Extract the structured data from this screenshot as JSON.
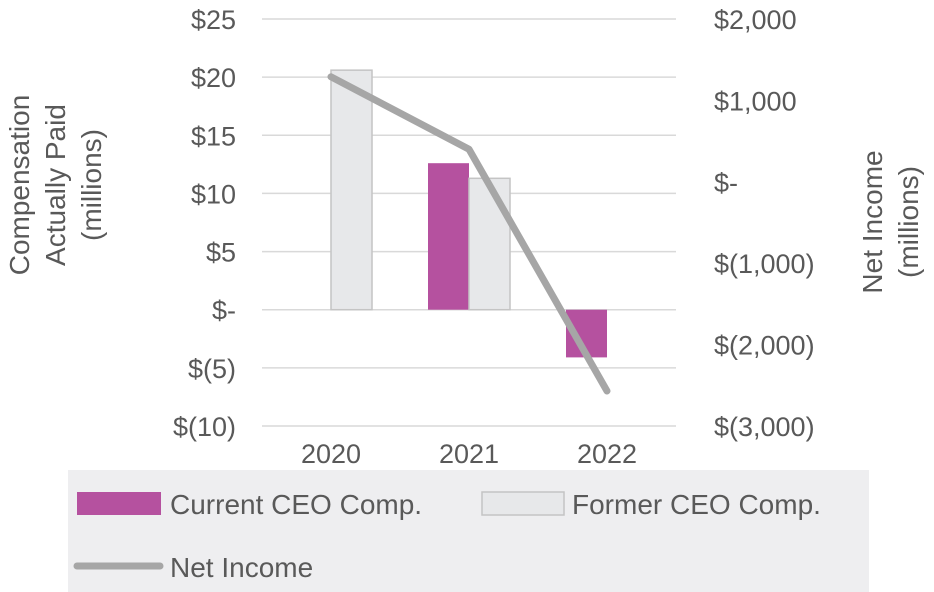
{
  "chart_data": {
    "type": "bar",
    "categories": [
      "2020",
      "2021",
      "2022"
    ],
    "series": [
      {
        "name": "Current CEO Comp.",
        "type": "bar",
        "axis": "left",
        "values": [
          null,
          12.6,
          -4.1
        ],
        "color": "#b5519f"
      },
      {
        "name": "Former CEO Comp.",
        "type": "bar",
        "axis": "left",
        "values": [
          20.6,
          11.3,
          null
        ],
        "color": "#e7e8ea"
      },
      {
        "name": "Net Income",
        "type": "line",
        "axis": "right",
        "values": [
          1290,
          400,
          -2570
        ],
        "color": "#a6a6a6"
      }
    ],
    "left_axis": {
      "title_lines": [
        "Compensation",
        "Actually Paid",
        "(millions)"
      ],
      "ylim": [
        -10,
        25
      ],
      "ticks": [
        25,
        20,
        15,
        10,
        5,
        0,
        -5,
        -10
      ],
      "tick_labels": [
        "$25",
        "$20",
        "$15",
        "$10",
        "$5",
        "$-",
        "$(5)",
        "$(10)"
      ]
    },
    "right_axis": {
      "title_lines": [
        "Net Income",
        "(millions)"
      ],
      "ylim": [
        -3000,
        2000
      ],
      "ticks": [
        2000,
        1000,
        0,
        -1000,
        -2000,
        -3000
      ],
      "tick_labels": [
        "$2,000",
        "$1,000",
        "$-",
        "$(1,000)",
        "$(2,000)",
        "$(3,000)"
      ]
    },
    "legend": {
      "position": "bottom",
      "items": [
        "Current CEO Comp.",
        "Former CEO Comp.",
        "Net Income"
      ]
    },
    "grid": true
  }
}
